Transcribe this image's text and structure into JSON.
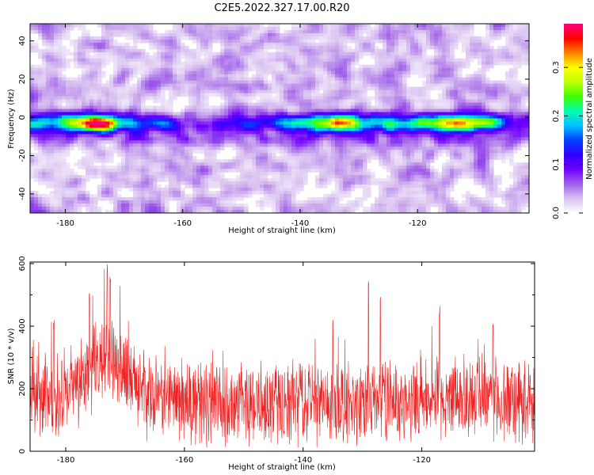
{
  "figure_title": "C2E5.2022.327.17.00.R20",
  "colors": {
    "snr_line": "#ee2222",
    "colormap": [
      "#ffffff",
      "#d8c0f0",
      "#a060e8",
      "#7000ff",
      "#3000ff",
      "#0040ff",
      "#00c0ff",
      "#00ffb0",
      "#40ff00",
      "#c0ff00",
      "#ffff00",
      "#ff8000",
      "#ff0000",
      "#ff0080"
    ]
  },
  "chart_data": [
    {
      "type": "heatmap",
      "title": "",
      "xlabel": "Height of straight line (km)",
      "ylabel": "Frequency (Hz)",
      "xlim": [
        -186,
        -101
      ],
      "ylim": [
        -50,
        49
      ],
      "x_ticks": [
        -180,
        -160,
        -140,
        -120
      ],
      "x_tick_labels": [
        "-180",
        "-160",
        "-140",
        "-120"
      ],
      "y_ticks": [
        -40,
        -20,
        0,
        20,
        40
      ],
      "y_tick_labels": [
        "-40",
        "-20",
        "0",
        "20",
        "40"
      ],
      "colorbar": {
        "label": "Normalized spectral amplitude",
        "range": [
          0,
          0.39
        ],
        "ticks": [
          0,
          0.1,
          0.2,
          0.3
        ],
        "tick_labels": [
          "0.0",
          "0.1",
          "0.2",
          "0.3"
        ]
      },
      "ridge": {
        "frequency_hz": -3,
        "description_points": [
          {
            "x": -184,
            "amp": 0.15
          },
          {
            "x": -182,
            "amp": 0.2
          },
          {
            "x": -179,
            "amp": 0.3
          },
          {
            "x": -177,
            "amp": 0.34
          },
          {
            "x": -175,
            "amp": 0.38
          },
          {
            "x": -173,
            "amp": 0.36
          },
          {
            "x": -170,
            "amp": 0.25
          },
          {
            "x": -167,
            "amp": 0.15
          },
          {
            "x": -160,
            "amp": 0.08
          },
          {
            "x": -153,
            "amp": 0.1
          },
          {
            "x": -146,
            "amp": 0.14
          },
          {
            "x": -141,
            "amp": 0.2
          },
          {
            "x": -138,
            "amp": 0.24
          },
          {
            "x": -134,
            "amp": 0.34
          },
          {
            "x": -131,
            "amp": 0.3
          },
          {
            "x": -127,
            "amp": 0.22
          },
          {
            "x": -122,
            "amp": 0.2
          },
          {
            "x": -118,
            "amp": 0.3
          },
          {
            "x": -115,
            "amp": 0.35
          },
          {
            "x": -111,
            "amp": 0.34
          },
          {
            "x": -107,
            "amp": 0.22
          },
          {
            "x": -103,
            "amp": 0.12
          }
        ]
      }
    },
    {
      "type": "line",
      "title": "",
      "xlabel": "Height of straight line (km)",
      "ylabel": "SNR (10 * v/v)",
      "xlim": [
        -186,
        -101
      ],
      "ylim": [
        0,
        605
      ],
      "x_ticks": [
        -180,
        -160,
        -140,
        -120
      ],
      "x_tick_labels": [
        "-180",
        "-160",
        "-140",
        "-120"
      ],
      "y_ticks": [
        0,
        200,
        400,
        600
      ],
      "y_tick_labels": [
        "0",
        "200",
        "400",
        "600"
      ],
      "series": [
        {
          "name": "",
          "envelope_x": [
            -186,
            -182,
            -178,
            -176,
            -174,
            -172,
            -170,
            -168,
            -165,
            -160,
            -155,
            -150,
            -145,
            -140,
            -135,
            -130,
            -128,
            -125,
            -120,
            -115,
            -110,
            -105,
            -101
          ],
          "envelope_mean": [
            170,
            160,
            200,
            240,
            290,
            320,
            240,
            200,
            170,
            160,
            150,
            145,
            150,
            160,
            150,
            155,
            170,
            155,
            160,
            170,
            165,
            160,
            155
          ],
          "peaks": [
            {
              "x": -173,
              "y": 605
            },
            {
              "x": -172.5,
              "y": 580
            },
            {
              "x": -176,
              "y": 510
            },
            {
              "x": -129,
              "y": 560
            },
            {
              "x": -127,
              "y": 520
            },
            {
              "x": -117,
              "y": 470
            },
            {
              "x": -108,
              "y": 430
            },
            {
              "x": -182,
              "y": 420
            },
            {
              "x": -135,
              "y": 440
            }
          ],
          "noise_amplitude": 110,
          "sample_count": 1700
        }
      ]
    }
  ]
}
